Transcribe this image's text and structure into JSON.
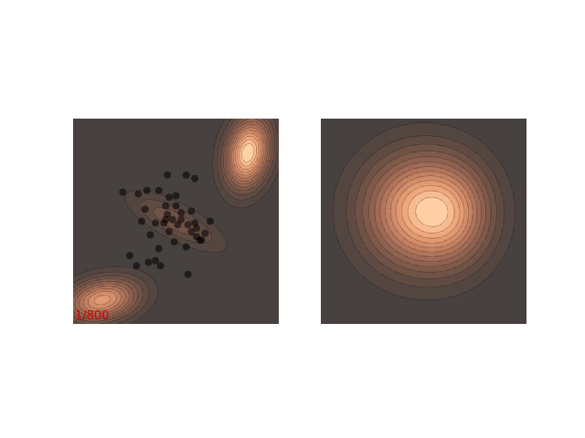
{
  "figure": {
    "background": "#ffffff",
    "colormap": [
      "#47413f",
      "#5e4a42",
      "#7a5849",
      "#986653",
      "#b87a5f",
      "#d8906c",
      "#f2a97d",
      "#ffd0a6"
    ],
    "frame_label": "1/800",
    "frame_label_color": "#d40000",
    "contour_line_color": "#000000"
  },
  "chart_data": [
    {
      "type": "contour",
      "panel": "left",
      "title": "",
      "xlabel": "",
      "ylabel": "",
      "xlim": [
        -3,
        3
      ],
      "ylim": [
        -3,
        3
      ],
      "grid": false,
      "axes_visible": false,
      "levels": 14,
      "density_components": [
        {
          "weight": 1.0,
          "mu": [
            2.1,
            2.0
          ],
          "sigma": [
            0.45,
            0.7
          ],
          "rho": 0.2
        },
        {
          "weight": 0.75,
          "mu": [
            -2.15,
            -2.3
          ],
          "sigma": [
            0.75,
            0.45
          ],
          "rho": 0.25
        },
        {
          "weight": 0.28,
          "mu": [
            0.0,
            0.0
          ],
          "sigma": [
            0.9,
            0.55
          ],
          "rho": -0.75
        }
      ],
      "scatter": {
        "color": "#000000",
        "alpha": 0.55,
        "points": [
          [
            -1.1,
            0.8
          ],
          [
            -0.85,
            0.9
          ],
          [
            -0.5,
            0.9
          ],
          [
            -1.55,
            0.85
          ],
          [
            -0.25,
            1.35
          ],
          [
            -0.2,
            0.7
          ],
          [
            0.3,
            1.35
          ],
          [
            0.55,
            1.25
          ],
          [
            0.0,
            0.75
          ],
          [
            -0.3,
            0.45
          ],
          [
            0.0,
            0.45
          ],
          [
            -0.25,
            0.2
          ],
          [
            -0.1,
            0.05
          ],
          [
            -0.35,
            -0.05
          ],
          [
            0.05,
            -0.1
          ],
          [
            0.15,
            0.05
          ],
          [
            0.35,
            -0.1
          ],
          [
            0.45,
            0.3
          ],
          [
            1.0,
            0.0
          ],
          [
            -0.6,
            -0.05
          ],
          [
            -0.9,
            0.35
          ],
          [
            -1.0,
            0.0
          ],
          [
            -0.75,
            -0.4
          ],
          [
            0.45,
            -0.3
          ],
          [
            0.55,
            -0.05
          ],
          [
            0.6,
            -0.45
          ],
          [
            0.85,
            -0.35
          ],
          [
            0.75,
            -0.55
          ],
          [
            -0.05,
            -0.6
          ],
          [
            0.3,
            -0.75
          ],
          [
            -0.5,
            -0.8
          ],
          [
            -0.2,
            -0.3
          ],
          [
            0.15,
            0.25
          ],
          [
            -0.6,
            -1.15
          ],
          [
            -0.45,
            -1.3
          ],
          [
            -0.8,
            -1.2
          ],
          [
            -1.35,
            -1.0
          ],
          [
            -1.15,
            -1.3
          ],
          [
            0.35,
            -1.55
          ],
          [
            0.7,
            -0.55
          ],
          [
            0.6,
            -0.2
          ],
          [
            -0.3,
            0.05
          ]
        ]
      }
    },
    {
      "type": "contour",
      "panel": "right",
      "title": "",
      "xlabel": "",
      "ylabel": "",
      "xlim": [
        -3,
        3
      ],
      "ylim": [
        -3,
        3
      ],
      "grid": false,
      "axes_visible": false,
      "levels": 14,
      "density_components": [
        {
          "weight": 1.0,
          "mu": [
            -0.1,
            0.3
          ],
          "sigma": [
            1.15,
            1.15
          ],
          "rho": 0.0
        },
        {
          "weight": 0.35,
          "mu": [
            0.9,
            0.2
          ],
          "sigma": [
            0.8,
            1.0
          ],
          "rho": 0.0
        }
      ]
    }
  ]
}
